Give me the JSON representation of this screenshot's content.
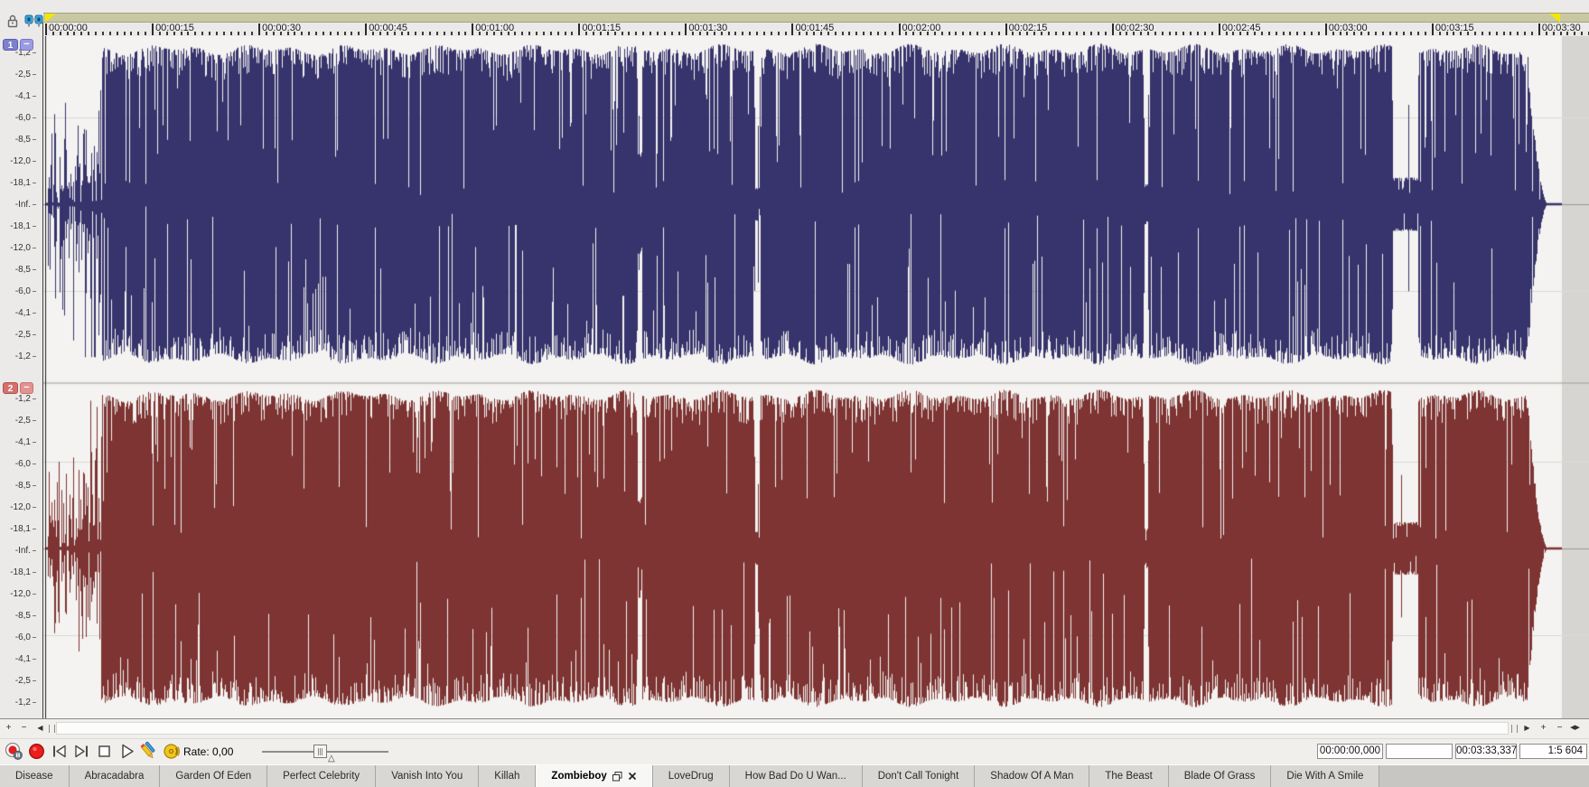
{
  "colors": {
    "ch1_wave": "#37336c",
    "ch2_wave": "#7d3432",
    "wave_bg": "#f4f3f1",
    "eof_bg": "#d7d5d2",
    "grid_center": "#9a9896",
    "grid_db6": "#dbd9d6",
    "loop_bar": "#c9c8a3",
    "loop_marker": "#f2e700",
    "channel1_badge": "#7e80cf",
    "channel2_badge": "#d4716f"
  },
  "ruler": {
    "timestamps": [
      "00:00:00",
      "00:00:15",
      "00:00:30",
      "00:00:45",
      "00:01:00",
      "00:01:15",
      "00:01:30",
      "00:01:45",
      "00:02:00",
      "00:02:15",
      "00:02:30",
      "00:02:45",
      "00:03:00",
      "00:03:15",
      "00:03:30"
    ],
    "interval_seconds": 15
  },
  "channels": [
    {
      "number": "1",
      "db_labels": [
        "-1,2",
        "-2,5",
        "-4,1",
        "-6,0",
        "-8,5",
        "-12,0",
        "-18,1",
        "-Inf.",
        "-18,1",
        "-12,0",
        "-8,5",
        "-6,0",
        "-4,1",
        "-2,5",
        "-1,2"
      ]
    },
    {
      "number": "2",
      "db_labels": [
        "-1,2",
        "-2,5",
        "-4,1",
        "-6,0",
        "-8,5",
        "-12,0",
        "-18,1",
        "-Inf.",
        "-18,1",
        "-12,0",
        "-8,5",
        "-6,0",
        "-4,1",
        "-2,5",
        "-1,2"
      ]
    }
  ],
  "waveform": {
    "duration_s": 213.337,
    "intro_sparse_until_s": 7.9,
    "quiet_regions": [
      {
        "start_s": 83.3,
        "end_s": 83.85,
        "level": 0.3
      },
      {
        "start_s": 99.8,
        "end_s": 100.4,
        "level": 0.1
      },
      {
        "start_s": 154.55,
        "end_s": 155.05,
        "level": 0.12
      },
      {
        "start_s": 189.5,
        "end_s": 193.0,
        "level": 0.16
      }
    ],
    "fade_out_start_s": 208.4,
    "fade_out_end_s": 211.3
  },
  "scrollbar": {
    "left_buttons": [
      "+",
      "−",
      "◀"
    ],
    "right_buttons": [
      "▶",
      "+",
      "−",
      "◀▶"
    ]
  },
  "transport": {
    "rate_label": "Rate: 0,00",
    "buttons": [
      "record-arm",
      "record",
      "go-to-start",
      "go-to-end",
      "stop",
      "play",
      "pencil-edit",
      "scrub"
    ]
  },
  "status": {
    "position": "00:00:00,000",
    "selection": "",
    "length": "00:03:33,337",
    "zoom_ratio": "1:5 604"
  },
  "tabs": [
    {
      "label": "Disease",
      "active": false
    },
    {
      "label": "Abracadabra",
      "active": false
    },
    {
      "label": "Garden Of Eden",
      "active": false
    },
    {
      "label": "Perfect Celebrity",
      "active": false
    },
    {
      "label": "Vanish Into You",
      "active": false
    },
    {
      "label": "Killah",
      "active": false
    },
    {
      "label": "Zombieboy",
      "active": true
    },
    {
      "label": "LoveDrug",
      "active": false
    },
    {
      "label": "How Bad Do U Wan...",
      "active": false
    },
    {
      "label": "Don't Call Tonight",
      "active": false
    },
    {
      "label": "Shadow Of A Man",
      "active": false
    },
    {
      "label": "The Beast",
      "active": false
    },
    {
      "label": "Blade Of Grass",
      "active": false
    },
    {
      "label": "Die With A Smile",
      "active": false
    }
  ],
  "icons": {
    "header": [
      "lock-icon",
      "dock-link-icon"
    ],
    "loop_markers": [
      "loop-start-marker",
      "loop-end-marker"
    ],
    "transport": [
      "record-arm-icon",
      "record-icon",
      "go-to-start-icon",
      "go-to-end-icon",
      "stop-icon",
      "play-icon",
      "pencil-edit-icon",
      "scrub-icon"
    ],
    "scrollbar": [
      "zoom-in-icon",
      "zoom-out-icon",
      "scroll-left-icon",
      "scroll-right-icon",
      "fit-width-icon"
    ],
    "active_tab": [
      "restore-window-icon",
      "close-icon"
    ]
  }
}
